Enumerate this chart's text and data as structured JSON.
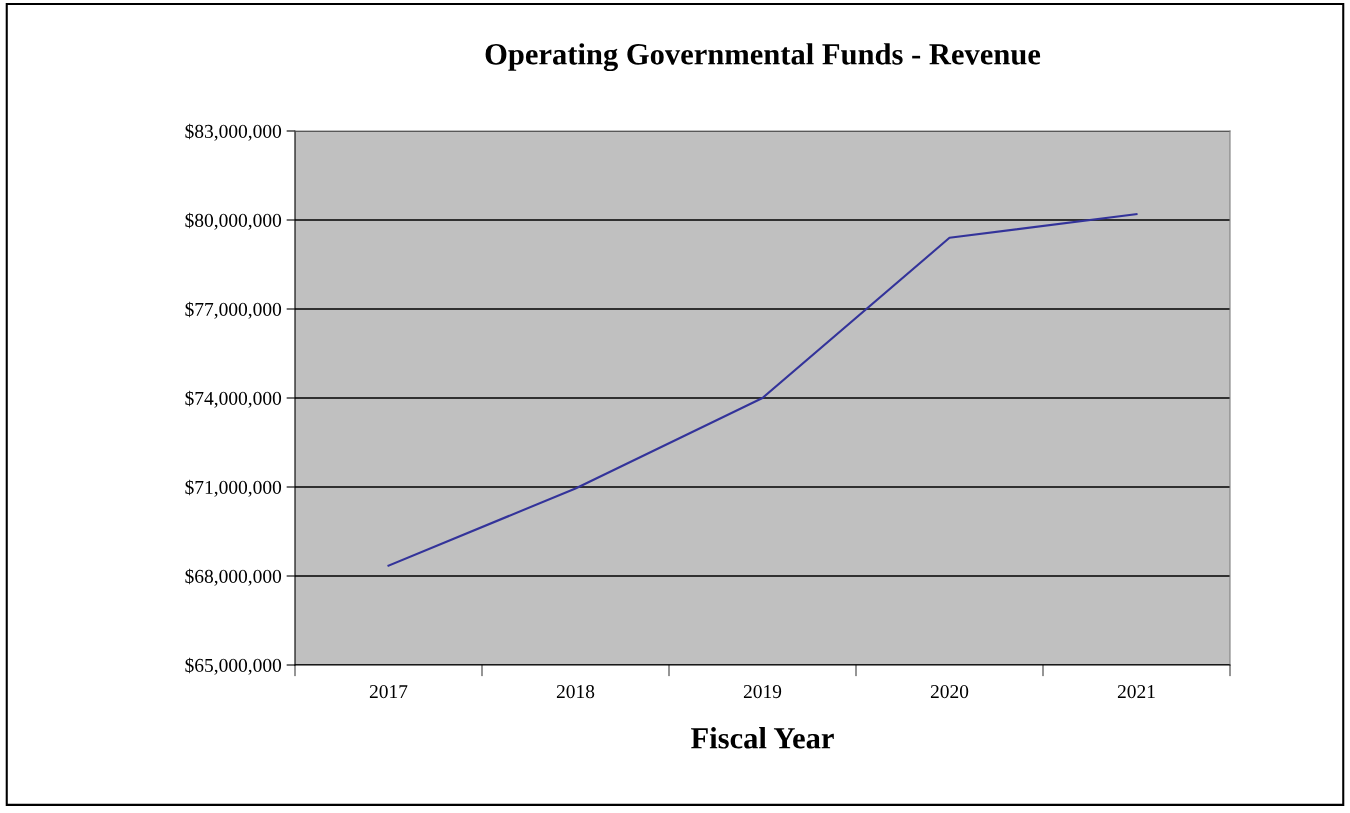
{
  "chart_data": {
    "type": "line",
    "title": "Operating Governmental Funds - Revenue",
    "xlabel": "Fiscal Year",
    "categories": [
      "2017",
      "2018",
      "2019",
      "2020",
      "2021"
    ],
    "series": [
      {
        "color": "#33339a",
        "values": [
          68350000,
          70950000,
          74000000,
          79400000,
          80200000
        ]
      }
    ],
    "ylim": [
      65000000,
      83000000
    ],
    "yticks": [
      {
        "value": 65000000,
        "label": "$65,000,000"
      },
      {
        "value": 68000000,
        "label": "$68,000,000"
      },
      {
        "value": 71000000,
        "label": "$71,000,000"
      },
      {
        "value": 74000000,
        "label": "$74,000,000"
      },
      {
        "value": 77000000,
        "label": "$77,000,000"
      },
      {
        "value": 80000000,
        "label": "$80,000,000"
      },
      {
        "value": 83000000,
        "label": "$83,000,000"
      }
    ],
    "grid": "y",
    "marker": "none",
    "line_style": "solid",
    "legend": false
  }
}
